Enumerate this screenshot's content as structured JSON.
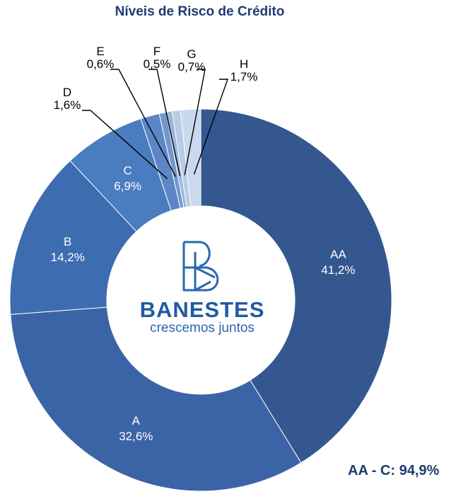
{
  "logo": {
    "name": "BANESTES",
    "tagline": "crescemos juntos"
  },
  "summary_label": "AA - C: 94,9%",
  "colors": {
    "title": "#1f3c73",
    "AA": "#34578f",
    "A": "#3b64a6",
    "B": "#3e6cb0",
    "C": "#4a7cc0",
    "D": "#5b87c6",
    "E": "#7198cc",
    "F": "#9db6dc",
    "G": "#b8cbe6",
    "H": "#c9d8ed"
  },
  "chart_data": {
    "type": "pie",
    "title": "Níveis de Risco de Crédito",
    "slices": [
      {
        "category": "AA",
        "value": 41.2,
        "label": "41,2%"
      },
      {
        "category": "A",
        "value": 32.6,
        "label": "32,6%"
      },
      {
        "category": "B",
        "value": 14.2,
        "label": "14,2%"
      },
      {
        "category": "C",
        "value": 6.9,
        "label": "6,9%"
      },
      {
        "category": "D",
        "value": 1.6,
        "label": "1,6%"
      },
      {
        "category": "E",
        "value": 0.6,
        "label": "0,6%"
      },
      {
        "category": "F",
        "value": 0.5,
        "label": "0,5%"
      },
      {
        "category": "G",
        "value": 0.7,
        "label": "0,7%"
      },
      {
        "category": "H",
        "value": 1.7,
        "label": "1,7%"
      }
    ]
  }
}
